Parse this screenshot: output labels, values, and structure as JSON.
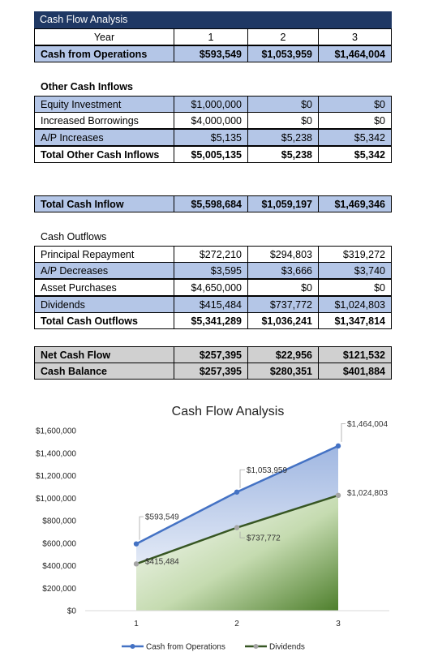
{
  "table": {
    "title": "Cash Flow Analysis",
    "year_label": "Year",
    "years": [
      "1",
      "2",
      "3"
    ],
    "cash_from_operations": {
      "label": "Cash from Operations",
      "values": [
        "$593,549",
        "$1,053,959",
        "$1,464,004"
      ]
    },
    "other_inflows": {
      "heading": "Other Cash Inflows",
      "rows": [
        {
          "label": "Equity Investment",
          "values": [
            "$1,000,000",
            "$0",
            "$0"
          ]
        },
        {
          "label": "Increased Borrowings",
          "values": [
            "$4,000,000",
            "$0",
            "$0"
          ]
        },
        {
          "label": "A/P Increases",
          "values": [
            "$5,135",
            "$5,238",
            "$5,342"
          ]
        }
      ],
      "total": {
        "label": "Total Other Cash Inflows",
        "values": [
          "$5,005,135",
          "$5,238",
          "$5,342"
        ]
      }
    },
    "total_inflow": {
      "label": "Total Cash Inflow",
      "values": [
        "$5,598,684",
        "$1,059,197",
        "$1,469,346"
      ]
    },
    "outflows": {
      "heading": "Cash Outflows",
      "rows": [
        {
          "label": "Principal Repayment",
          "values": [
            "$272,210",
            "$294,803",
            "$319,272"
          ]
        },
        {
          "label": "A/P Decreases",
          "values": [
            "$3,595",
            "$3,666",
            "$3,740"
          ]
        },
        {
          "label": "Asset Purchases",
          "values": [
            "$4,650,000",
            "$0",
            "$0"
          ]
        },
        {
          "label": "Dividends",
          "values": [
            "$415,484",
            "$737,772",
            "$1,024,803"
          ]
        }
      ],
      "total": {
        "label": "Total Cash Outflows",
        "values": [
          "$5,341,289",
          "$1,036,241",
          "$1,347,814"
        ]
      }
    },
    "net_cash_flow": {
      "label": "Net Cash Flow",
      "values": [
        "$257,395",
        "$22,956",
        "$121,532"
      ]
    },
    "cash_balance": {
      "label": "Cash Balance",
      "values": [
        "$257,395",
        "$280,351",
        "$401,884"
      ]
    }
  },
  "chart_data": {
    "type": "area",
    "title": "Cash Flow Analysis",
    "x": [
      1,
      2,
      3
    ],
    "ylim": [
      0,
      1600000
    ],
    "yticks": [
      0,
      200000,
      400000,
      600000,
      800000,
      1000000,
      1200000,
      1400000,
      1600000
    ],
    "ytick_labels": [
      "$0",
      "$200,000",
      "$400,000",
      "$600,000",
      "$800,000",
      "$1,000,000",
      "$1,200,000",
      "$1,400,000",
      "$1,600,000"
    ],
    "grid": false,
    "legend": "bottom",
    "series": [
      {
        "name": "Cash from Operations",
        "values": [
          593549,
          1053959,
          1464004
        ],
        "labels": [
          "$593,549",
          "$1,053,959",
          "$1,464,004"
        ],
        "color": "#4472c4"
      },
      {
        "name": "Dividends",
        "values": [
          415484,
          737772,
          1024803
        ],
        "labels": [
          "$415,484",
          "$737,772",
          "$1,024,803"
        ],
        "color": "#375623"
      }
    ]
  }
}
